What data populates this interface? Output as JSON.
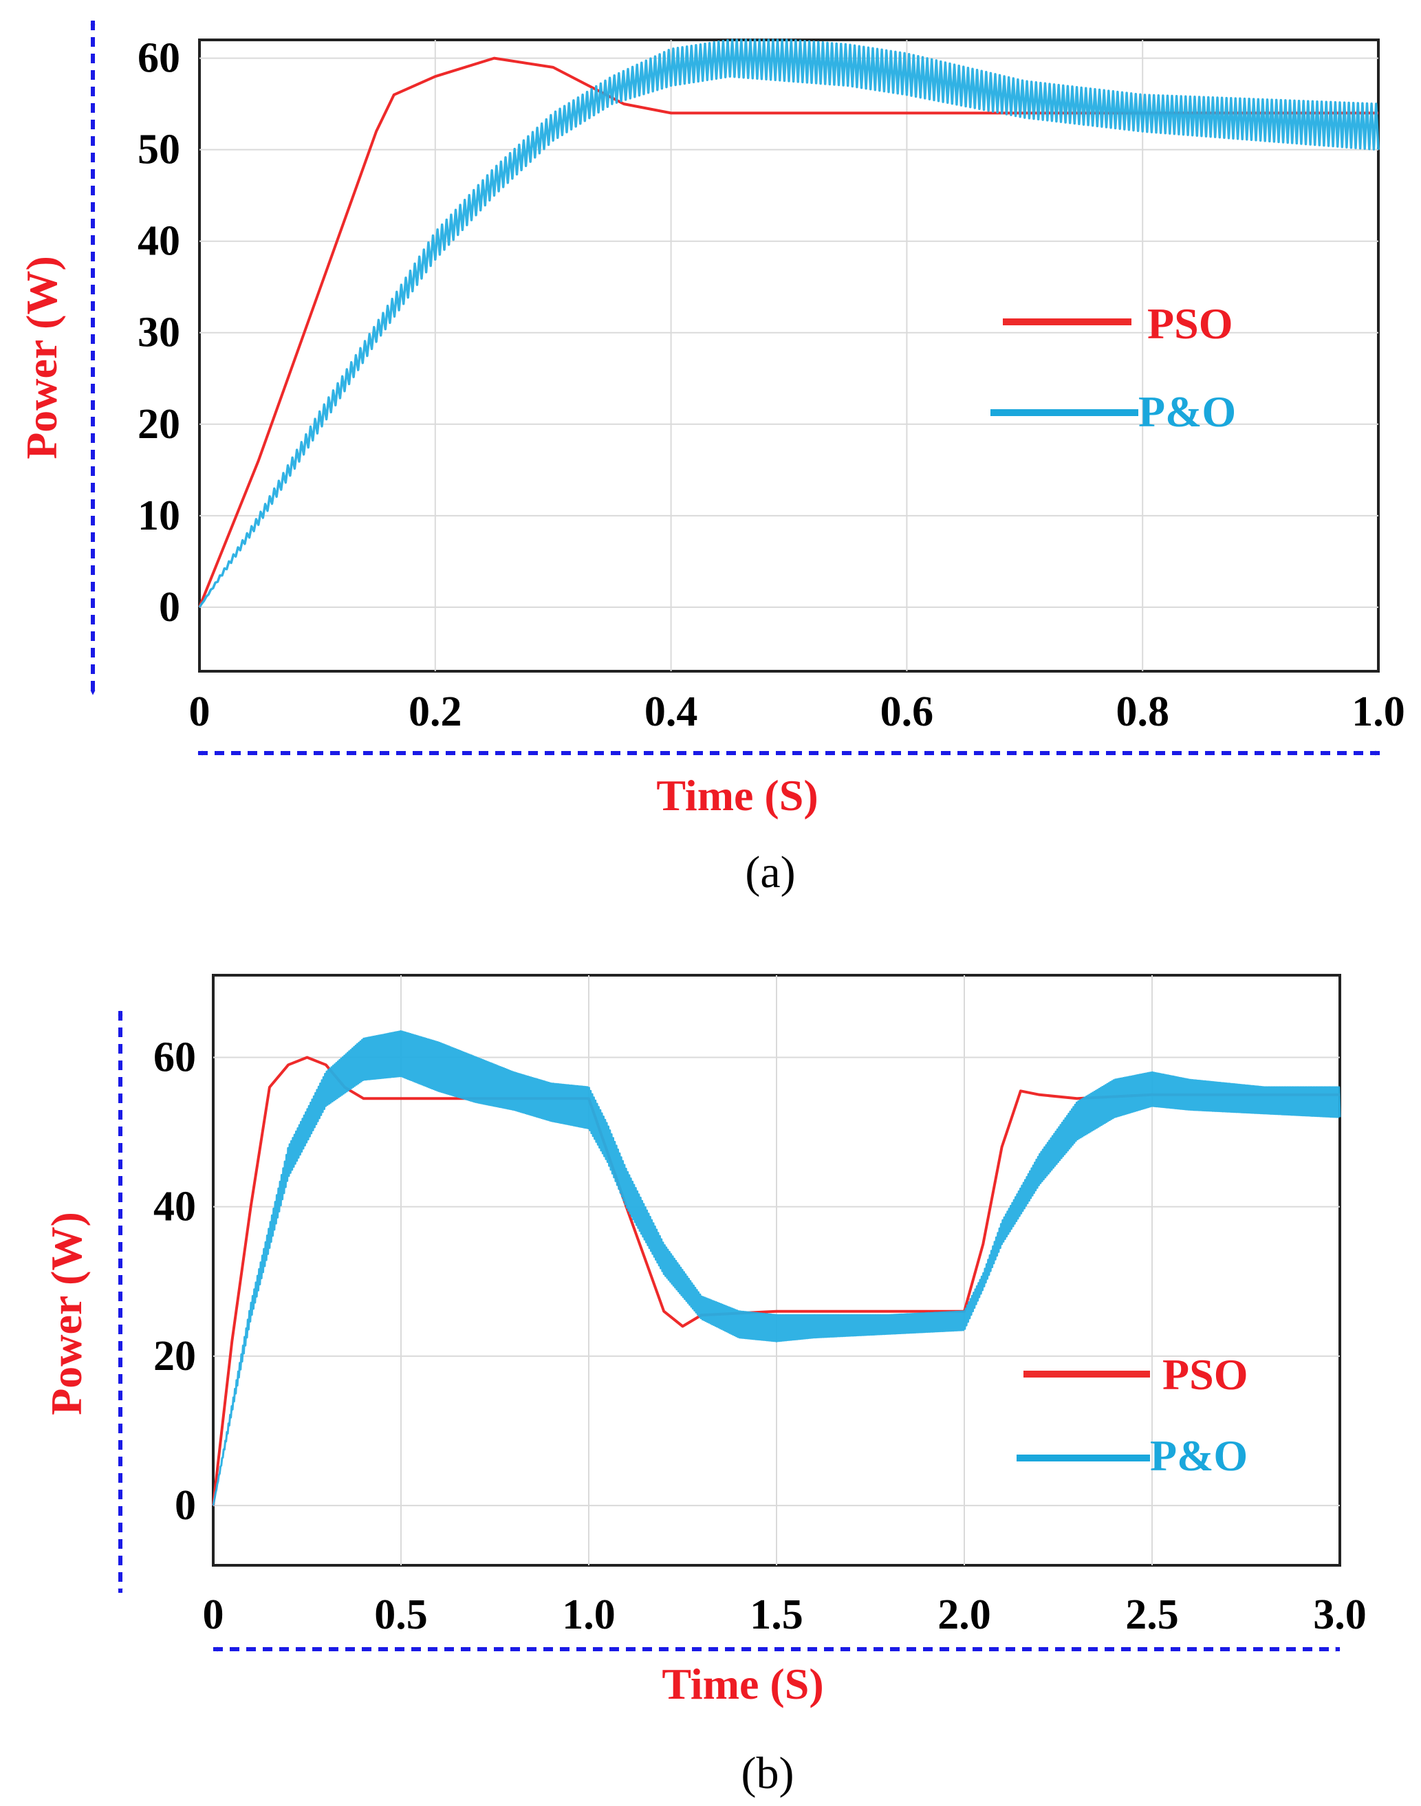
{
  "colors": {
    "pso": "#ee2a2a",
    "po": "#1aa7dc",
    "po_fill": "#26aee3",
    "axis_label": "#ee1c24",
    "arrow": "#1a1ae6",
    "grid": "#dadada"
  },
  "chart_data": [
    {
      "id": "a",
      "type": "line",
      "caption": "(a)",
      "xlabel": "Time (S)",
      "ylabel": "Power (W)",
      "xlim": [
        0,
        1.0
      ],
      "ylim": [
        -7,
        62
      ],
      "xticks": [
        0,
        0.2,
        0.4,
        0.6,
        0.8,
        1.0
      ],
      "xtick_labels": [
        "0",
        "0.2",
        "0.4",
        "0.6",
        "0.8",
        "1.0"
      ],
      "yticks": [
        0,
        10,
        20,
        30,
        40,
        50,
        60
      ],
      "ytick_labels": [
        "0",
        "10",
        "20",
        "30",
        "40",
        "50",
        "60"
      ],
      "grid": true,
      "legend": [
        "PSO",
        "P&O"
      ],
      "legend_placement": "right-middle",
      "series": [
        {
          "name": "PSO",
          "band": false,
          "x": [
            0,
            0.05,
            0.1,
            0.15,
            0.165,
            0.2,
            0.25,
            0.3,
            0.33,
            0.36,
            0.4,
            0.5,
            0.6,
            0.7,
            0.8,
            0.9,
            1.0
          ],
          "y": [
            0,
            16,
            34,
            52,
            56,
            58,
            60,
            59,
            57,
            55,
            54,
            54,
            54,
            54,
            54,
            54,
            54
          ]
        },
        {
          "name": "P&O",
          "band": true,
          "x": [
            0,
            0.05,
            0.1,
            0.15,
            0.2,
            0.25,
            0.3,
            0.35,
            0.4,
            0.45,
            0.5,
            0.55,
            0.6,
            0.7,
            0.8,
            0.9,
            1.0
          ],
          "lower": [
            0,
            9,
            19,
            29,
            38,
            45,
            51,
            55,
            57,
            58,
            57.5,
            57,
            56,
            53.5,
            52,
            51,
            50
          ],
          "upper": [
            0,
            10,
            21,
            31,
            41,
            48,
            54,
            58,
            61,
            62,
            62,
            61.5,
            60.5,
            57.5,
            56,
            55.5,
            55
          ]
        }
      ]
    },
    {
      "id": "b",
      "type": "line",
      "caption": "(b)",
      "xlabel": "Time (S)",
      "ylabel": "Power (W)",
      "xlim": [
        0,
        3.0
      ],
      "ylim": [
        -8,
        71
      ],
      "xticks": [
        0,
        0.5,
        1.0,
        1.5,
        2.0,
        2.5,
        3.0
      ],
      "xtick_labels": [
        "0",
        "0.5",
        "1.0",
        "1.5",
        "2.0",
        "2.5",
        "3.0"
      ],
      "yticks": [
        0,
        20,
        40,
        60
      ],
      "ytick_labels": [
        "0",
        "20",
        "40",
        "60"
      ],
      "grid": true,
      "legend": [
        "PSO",
        "P&O"
      ],
      "legend_placement": "right-lower",
      "series": [
        {
          "name": "PSO",
          "band": false,
          "x": [
            0,
            0.05,
            0.1,
            0.15,
            0.2,
            0.25,
            0.3,
            0.35,
            0.4,
            0.6,
            0.8,
            1.0,
            1.1,
            1.2,
            1.25,
            1.3,
            1.5,
            1.7,
            1.9,
            2.0,
            2.05,
            2.1,
            2.15,
            2.2,
            2.3,
            2.5,
            3.0
          ],
          "y": [
            0,
            22,
            40,
            56,
            59,
            60,
            59,
            56,
            54.5,
            54.5,
            54.5,
            54.5,
            40,
            26,
            24,
            25.5,
            26,
            26,
            26,
            26,
            35,
            48,
            55.5,
            55,
            54.5,
            55,
            55
          ]
        },
        {
          "name": "P&O",
          "band": true,
          "x": [
            0,
            0.1,
            0.2,
            0.3,
            0.4,
            0.5,
            0.6,
            0.7,
            0.8,
            0.9,
            1.0,
            1.05,
            1.1,
            1.2,
            1.3,
            1.4,
            1.5,
            1.6,
            1.8,
            2.0,
            2.05,
            2.1,
            2.2,
            2.3,
            2.4,
            2.5,
            2.6,
            2.8,
            3.0
          ],
          "lower": [
            0,
            25,
            44,
            53.5,
            57,
            57.5,
            55.5,
            54,
            53,
            51.5,
            50.5,
            46,
            40,
            31,
            25,
            22.5,
            22,
            22.5,
            23,
            23.5,
            29,
            35,
            43,
            49,
            52,
            53.5,
            53,
            52.5,
            52
          ],
          "upper": [
            0,
            27,
            48,
            58,
            62.5,
            63.5,
            62,
            60,
            58,
            56.5,
            56,
            51,
            45,
            35,
            28,
            26,
            25.5,
            25.5,
            25.5,
            26,
            31,
            38,
            47,
            54,
            57,
            58,
            57,
            56,
            56
          ]
        }
      ]
    }
  ]
}
